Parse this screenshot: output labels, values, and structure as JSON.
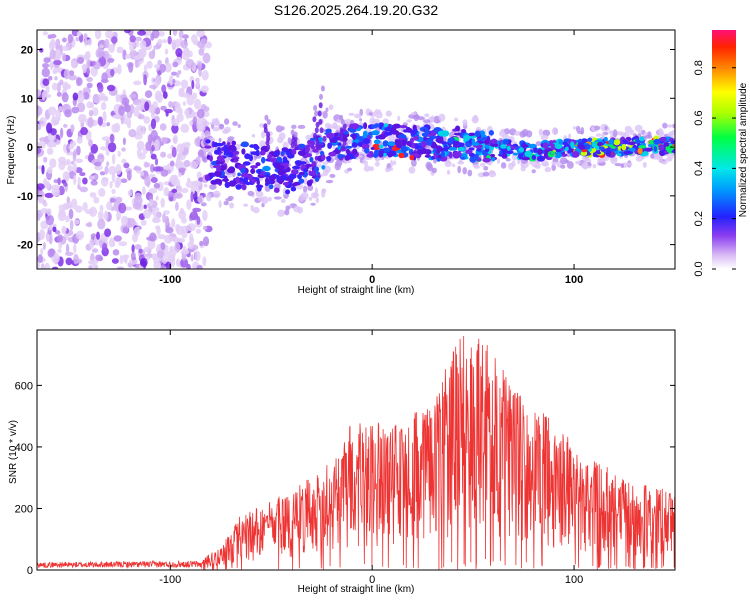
{
  "title": "S126.2025.264.19.20.G32",
  "chart_data": [
    {
      "type": "heatmap",
      "name": "spectrogram",
      "xlabel": "Height of straight line (km)",
      "ylabel": "Frequency (Hz)",
      "xlim": [
        -166,
        150
      ],
      "ylim": [
        -25,
        24
      ],
      "xticks": [
        -100,
        0,
        100
      ],
      "xtick_labels": [
        "-100",
        "0",
        "100"
      ],
      "yticks": [
        20,
        10,
        0,
        -10,
        -20
      ],
      "ytick_labels": [
        "20",
        "10",
        "0",
        "-10",
        "-20"
      ],
      "colorbar": {
        "label": "Normalized spectral amplitude",
        "range": [
          0.0,
          0.95
        ],
        "ticks": [
          0.0,
          0.2,
          0.4,
          0.6,
          0.8
        ],
        "tick_labels": [
          "0.0",
          "0.2",
          "0.4",
          "0.6",
          "0.8"
        ],
        "colormap": "rainbow"
      },
      "features": {
        "noise_region_x": [
          -166,
          -85
        ],
        "signal_track": [
          {
            "x": -80,
            "f": -3.0
          },
          {
            "x": -60,
            "f": -4.0
          },
          {
            "x": -40,
            "f": -5.0
          },
          {
            "x": -30,
            "f": -3.0
          },
          {
            "x": -20,
            "f": 0.0
          },
          {
            "x": -10,
            "f": 1.0
          },
          {
            "x": 0,
            "f": 1.5
          },
          {
            "x": 20,
            "f": 1.0
          },
          {
            "x": 50,
            "f": 0.5
          },
          {
            "x": 80,
            "f": -1.0
          },
          {
            "x": 100,
            "f": 0.0
          },
          {
            "x": 120,
            "f": 0.0
          },
          {
            "x": 150,
            "f": 0.5
          }
        ]
      }
    },
    {
      "type": "line",
      "name": "snr",
      "xlabel": "Height of straight line (km)",
      "ylabel": "SNR (10 * v/v)",
      "xlim": [
        -166,
        150
      ],
      "ylim": [
        0,
        780
      ],
      "xticks": [
        -100,
        0,
        100
      ],
      "xtick_labels": [
        "-100",
        "0",
        "100"
      ],
      "yticks": [
        0,
        200,
        400,
        600
      ],
      "ytick_labels": [
        "0",
        "200",
        "400",
        "600"
      ],
      "color": "#ee3333",
      "envelope": [
        {
          "x": -166,
          "y": 25
        },
        {
          "x": -85,
          "y": 30
        },
        {
          "x": -75,
          "y": 80
        },
        {
          "x": -65,
          "y": 180
        },
        {
          "x": -40,
          "y": 260
        },
        {
          "x": -20,
          "y": 360
        },
        {
          "x": -10,
          "y": 480
        },
        {
          "x": 10,
          "y": 480
        },
        {
          "x": 30,
          "y": 540
        },
        {
          "x": 42,
          "y": 760
        },
        {
          "x": 55,
          "y": 770
        },
        {
          "x": 70,
          "y": 600
        },
        {
          "x": 90,
          "y": 480
        },
        {
          "x": 110,
          "y": 360
        },
        {
          "x": 130,
          "y": 280
        },
        {
          "x": 150,
          "y": 260
        }
      ]
    }
  ]
}
